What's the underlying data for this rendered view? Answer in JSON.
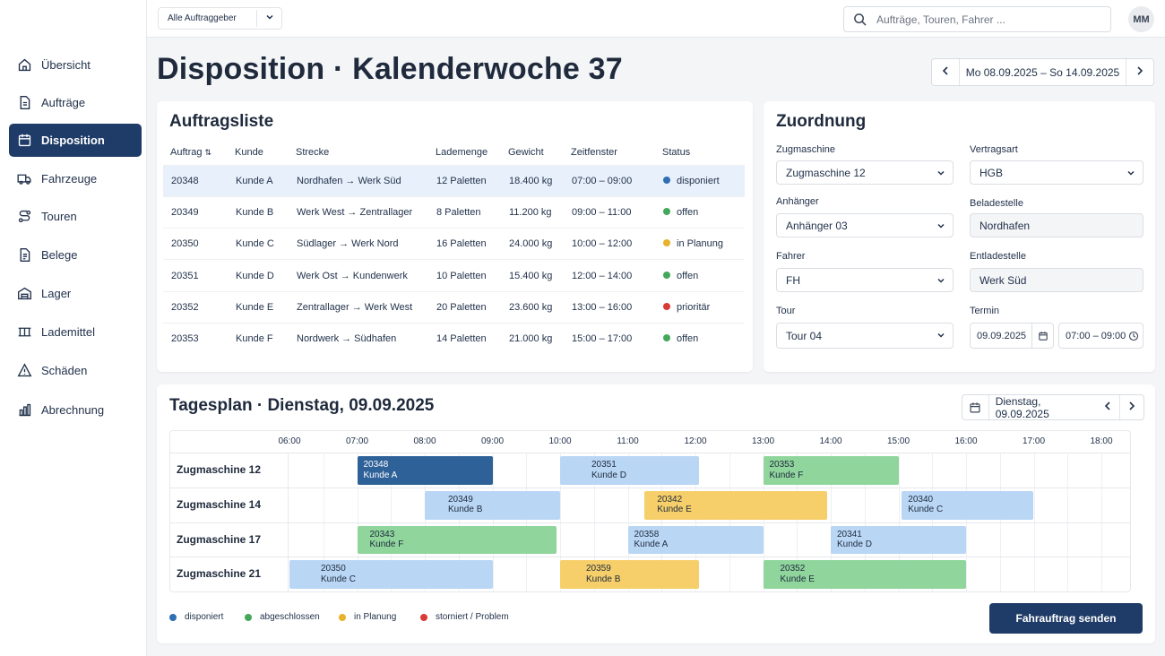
{
  "topbar": {
    "client_filter": "Alle Auftraggeber",
    "search_placeholder": "Aufträge, Touren, Fahrer ...",
    "user_initials": "MM"
  },
  "sidebar": {
    "items": [
      {
        "label": "Übersicht",
        "icon": "home-icon"
      },
      {
        "label": "Aufträge",
        "icon": "document-icon"
      },
      {
        "label": "Disposition",
        "icon": "calendar-icon",
        "active": true
      },
      {
        "label": "Fahrzeuge",
        "icon": "truck-icon"
      },
      {
        "label": "Touren",
        "icon": "route-icon"
      },
      {
        "label": "Belege",
        "icon": "receipt-icon"
      },
      {
        "label": "Lager",
        "icon": "warehouse-icon"
      },
      {
        "label": "Lademittel",
        "icon": "pallet-icon"
      },
      {
        "label": "Schäden",
        "icon": "warning-icon"
      },
      {
        "label": "Abrechnung",
        "icon": "bar-chart-icon"
      }
    ]
  },
  "page": {
    "title": "Disposition · Kalenderwoche 37",
    "week_range": "Mo 08.09.2025 – So 14.09.2025"
  },
  "orders": {
    "title": "Auftragsliste",
    "columns": [
      "Auftrag",
      "Kunde",
      "Strecke",
      "Lademenge",
      "Gewicht",
      "Zeitfenster",
      "Status"
    ],
    "rows": [
      {
        "id": "20348",
        "customer": "Kunde A",
        "route": "Nordhafen → Werk Süd",
        "load": "12 Paletten",
        "weight": "18.400 kg",
        "window": "07:00 – 09:00",
        "status": "disponiert",
        "color": "#2f6fb3"
      },
      {
        "id": "20349",
        "customer": "Kunde B",
        "route": "Werk West → Zentrallager",
        "load": "8 Paletten",
        "weight": "11.200 kg",
        "window": "09:00 – 11:00",
        "status": "offen",
        "color": "#43a85a"
      },
      {
        "id": "20350",
        "customer": "Kunde C",
        "route": "Südlager → Werk Nord",
        "load": "16 Paletten",
        "weight": "24.000 kg",
        "window": "10:00 – 12:00",
        "status": "in Planung",
        "color": "#e8b32a"
      },
      {
        "id": "20351",
        "customer": "Kunde D",
        "route": "Werk Ost → Kundenwerk",
        "load": "10 Paletten",
        "weight": "15.400 kg",
        "window": "12:00 – 14:00",
        "status": "offen",
        "color": "#43a85a"
      },
      {
        "id": "20352",
        "customer": "Kunde E",
        "route": "Zentrallager → Werk West",
        "load": "20 Paletten",
        "weight": "23.600 kg",
        "window": "13:00 – 16:00",
        "status": "prioritär",
        "color": "#d93a35"
      },
      {
        "id": "20353",
        "customer": "Kunde F",
        "route": "Nordwerk → Südhafen",
        "load": "14 Paletten",
        "weight": "21.000 kg",
        "window": "15:00 – 17:00",
        "status": "offen",
        "color": "#43a85a"
      }
    ]
  },
  "assignment": {
    "title": "Zuordnung",
    "tractor_label": "Zugmaschine",
    "tractor_value": "Zugmaschine 12",
    "contract_label": "Vertragsart",
    "contract_value": "HGB",
    "trailer_label": "Anhänger",
    "trailer_value": "Anhänger 03",
    "loading_label": "Beladestelle",
    "loading_value": "Nordhafen",
    "driver_label": "Fahrer",
    "driver_value": "FH",
    "unloading_label": "Entladestelle",
    "unloading_value": "Werk Süd",
    "tour_label": "Tour",
    "tour_value": "Tour 04",
    "date_label": "Termin",
    "date_value": "09.09.2025",
    "time_value": "07:00 – 09:00"
  },
  "dayplan": {
    "title": "Tagesplan · Dienstag, 09.09.2025",
    "date_picker": "Dienstag, 09.09.2025",
    "hours": [
      "06:00",
      "07:00",
      "08:00",
      "09:00",
      "10:00",
      "11:00",
      "12:00",
      "13:00",
      "14:00",
      "15:00",
      "16:00",
      "17:00",
      "18:00"
    ],
    "status_colors": {
      "disponiert": "#2f6199",
      "abgeschlossen": "#8fd59c",
      "in Planung": "#f6cf6a",
      "blue-light": "#b9d6f5"
    },
    "resources": [
      {
        "name": "Zugmaschine 12",
        "bars": [
          {
            "id": "20348",
            "customer": "Kunde A",
            "start": 7.0,
            "end": 9.0,
            "fill": "#2f6199",
            "text": "#ffffff"
          },
          {
            "id": "20351",
            "customer": "Kunde D",
            "start": 10.0,
            "end": 12.05,
            "fill": "#b9d6f5",
            "text": "#1f2a3c"
          },
          {
            "id": "20353",
            "customer": "Kunde F",
            "start": 13.0,
            "end": 15.0,
            "fill": "#8fd59c",
            "text": "#1f2a3c"
          }
        ]
      },
      {
        "name": "Zugmaschine 14",
        "bars": [
          {
            "id": "20349",
            "customer": "Kunde B",
            "start": 8.0,
            "end": 10.0,
            "fill": "#b9d6f5",
            "text": "#1f2a3c"
          },
          {
            "id": "20342",
            "customer": "Kunde E",
            "start": 11.25,
            "end": 13.95,
            "fill": "#f6cf6a",
            "text": "#1f2a3c"
          },
          {
            "id": "20340",
            "customer": "Kunde C",
            "start": 15.05,
            "end": 17.0,
            "fill": "#b9d6f5",
            "text": "#1f2a3c"
          }
        ]
      },
      {
        "name": "Zugmaschine 17",
        "bars": [
          {
            "id": "20343",
            "customer": "Kunde F",
            "start": 7.0,
            "end": 9.95,
            "fill": "#8fd59c",
            "text": "#1f2a3c"
          },
          {
            "id": "20358",
            "customer": "Kunde A",
            "start": 11.0,
            "end": 13.0,
            "fill": "#b9d6f5",
            "text": "#1f2a3c"
          },
          {
            "id": "20341",
            "customer": "Kunde D",
            "start": 14.0,
            "end": 16.0,
            "fill": "#b9d6f5",
            "text": "#1f2a3c"
          }
        ]
      },
      {
        "name": "Zugmaschine 21",
        "bars": [
          {
            "id": "20350",
            "customer": "Kunde C",
            "start": 6.0,
            "end": 9.0,
            "fill": "#b9d6f5",
            "text": "#1f2a3c"
          },
          {
            "id": "20359",
            "customer": "Kunde B",
            "start": 10.0,
            "end": 12.05,
            "fill": "#f6cf6a",
            "text": "#1f2a3c"
          },
          {
            "id": "20352",
            "customer": "Kunde E",
            "start": 13.0,
            "end": 16.0,
            "fill": "#8fd59c",
            "text": "#1f2a3c"
          }
        ]
      }
    ],
    "legend": [
      {
        "label": "disponiert",
        "color": "#2f6fb3"
      },
      {
        "label": "abgeschlossen",
        "color": "#43a85a"
      },
      {
        "label": "in Planung",
        "color": "#e8b32a"
      },
      {
        "label": "storniert / Problem",
        "color": "#d93a35"
      }
    ],
    "send_button": "Fahrauftrag senden"
  }
}
